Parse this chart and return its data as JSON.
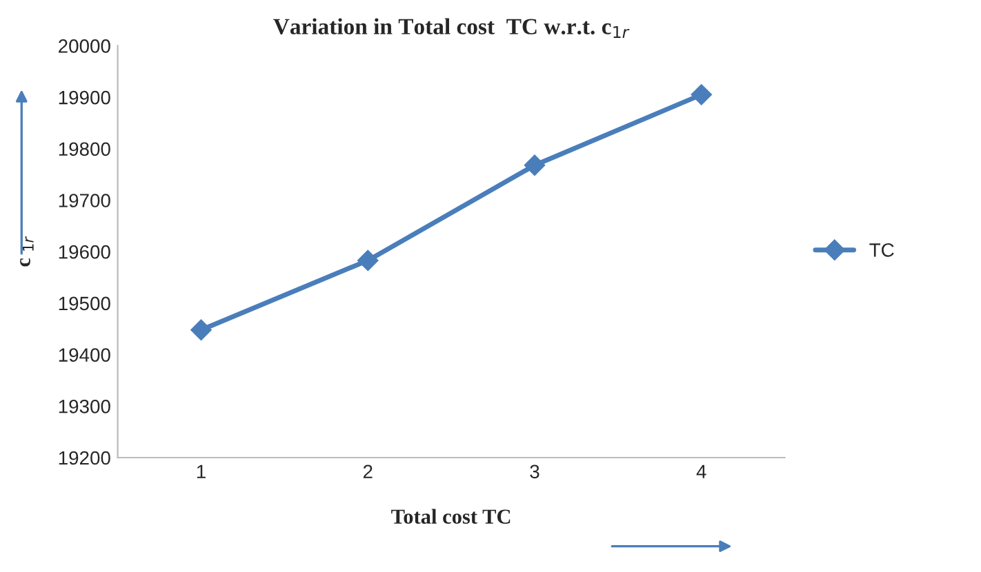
{
  "chart_data": {
    "type": "line",
    "title": "Variation in Total cost  TC w.r.t. c$_{1r}$",
    "xlabel": "Total cost TC",
    "ylabel": "c $_{1r}$",
    "categories": [
      "1",
      "2",
      "3",
      "4"
    ],
    "series": [
      {
        "name": "TC",
        "color": "#4a7ebb",
        "values": [
          19448,
          19583,
          19768,
          19905
        ]
      }
    ],
    "ylim": [
      19200,
      20000
    ],
    "yticks": [
      19200,
      19300,
      19400,
      19500,
      19600,
      19700,
      19800,
      19900,
      20000
    ],
    "grid": false,
    "legend": "right",
    "marker": "diamond",
    "line_style": "solid"
  }
}
